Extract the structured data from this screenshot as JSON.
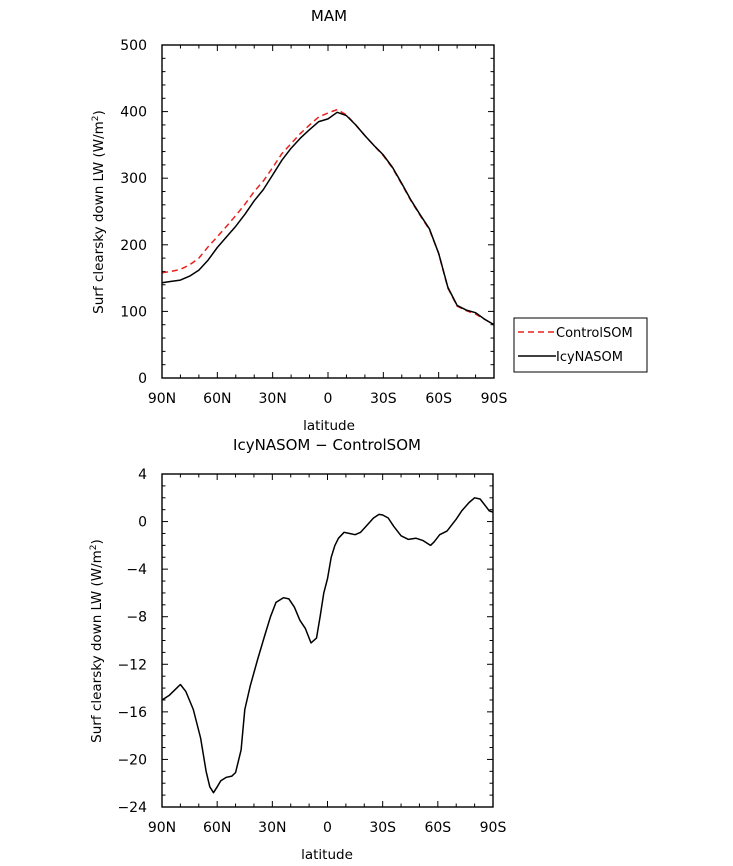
{
  "chart_data": [
    {
      "type": "line",
      "title": "MAM",
      "xlabel": "latitude",
      "ylabel": "Surf clearsky down LW (W/m",
      "ylabel_sup": "2",
      "ylabel_close": ")",
      "xlim": [
        90,
        -90
      ],
      "ylim": [
        0,
        500
      ],
      "x_ticks": [
        90,
        60,
        30,
        0,
        -30,
        -60,
        -90
      ],
      "x_tick_labels": [
        "90N",
        "60N",
        "30N",
        "0",
        "30S",
        "60S",
        "90S"
      ],
      "y_ticks": [
        0,
        100,
        200,
        300,
        400,
        500
      ],
      "y_tick_labels": [
        "0",
        "100",
        "200",
        "300",
        "400",
        "500"
      ],
      "grid": false,
      "legend_position": "right",
      "series": [
        {
          "name": "ControlSOM",
          "color": "#e8211c",
          "dash": "dashed",
          "x": [
            90,
            85,
            80,
            75,
            70,
            65,
            60,
            55,
            50,
            45,
            40,
            35,
            30,
            25,
            20,
            15,
            10,
            5,
            0,
            -5,
            -10,
            -15,
            -20,
            -25,
            -30,
            -35,
            -40,
            -45,
            -50,
            -55,
            -60,
            -65,
            -70,
            -75,
            -80,
            -85,
            -90
          ],
          "y": [
            158,
            160,
            163,
            170,
            180,
            197,
            212,
            228,
            244,
            261,
            280,
            296,
            316,
            337,
            352,
            367,
            380,
            392,
            398,
            403,
            395,
            380,
            364,
            349,
            334,
            315,
            291,
            266,
            244,
            223,
            187,
            135,
            108,
            101,
            96,
            88,
            80
          ]
        },
        {
          "name": "IcyNASOM",
          "color": "#000000",
          "dash": "solid",
          "x": [
            90,
            85,
            80,
            75,
            70,
            65,
            60,
            55,
            50,
            45,
            40,
            35,
            30,
            25,
            20,
            15,
            10,
            5,
            0,
            -5,
            -10,
            -15,
            -20,
            -25,
            -30,
            -35,
            -40,
            -45,
            -50,
            -55,
            -60,
            -65,
            -70,
            -75,
            -80,
            -85,
            -90
          ],
          "y": [
            143,
            145,
            147,
            153,
            162,
            177,
            196,
            212,
            228,
            246,
            266,
            283,
            305,
            327,
            345,
            360,
            373,
            385,
            389,
            399,
            394,
            380,
            364,
            349,
            335,
            316,
            292,
            267,
            245,
            224,
            187,
            136,
            109,
            102,
            98,
            88,
            80
          ]
        }
      ]
    },
    {
      "type": "line",
      "title": "IcyNASOM − ControlSOM",
      "xlabel": "latitude",
      "ylabel": "Surf clearsky down LW (W/m",
      "ylabel_sup": "2",
      "ylabel_close": ")",
      "xlim": [
        90,
        -90
      ],
      "ylim": [
        -24,
        4
      ],
      "x_ticks": [
        90,
        60,
        30,
        0,
        -30,
        -60,
        -90
      ],
      "x_tick_labels": [
        "90N",
        "60N",
        "30N",
        "0",
        "30S",
        "60S",
        "90S"
      ],
      "y_ticks": [
        4,
        0,
        -4,
        -8,
        -12,
        -16,
        -20,
        -24
      ],
      "y_tick_labels": [
        "4",
        "0",
        "−4",
        "−8",
        "−12",
        "−16",
        "−20",
        "−24"
      ],
      "grid": false,
      "series": [
        {
          "color": "#000000",
          "dash": "solid",
          "x": [
            90,
            86,
            82,
            80,
            77,
            73,
            69,
            66,
            64,
            62,
            60,
            58,
            55,
            52,
            50,
            47,
            45,
            42,
            38,
            34,
            31,
            28,
            24,
            21,
            18,
            15,
            12,
            9,
            6,
            4,
            2,
            0,
            -2,
            -4,
            -6,
            -9,
            -12,
            -15,
            -18,
            -21,
            -25,
            -28,
            -30,
            -33,
            -36,
            -40,
            -44,
            -48,
            -52,
            -56,
            -58,
            -61,
            -65,
            -70,
            -73,
            -77,
            -80,
            -83,
            -86,
            -88,
            -90
          ],
          "y": [
            -15.0,
            -14.6,
            -14.0,
            -13.7,
            -14.3,
            -15.8,
            -18.2,
            -21.0,
            -22.3,
            -22.8,
            -22.3,
            -21.8,
            -21.5,
            -21.4,
            -21.1,
            -19.2,
            -15.8,
            -13.8,
            -11.6,
            -9.5,
            -8.0,
            -6.8,
            -6.4,
            -6.5,
            -7.2,
            -8.3,
            -9.0,
            -10.2,
            -9.8,
            -8.0,
            -6.0,
            -4.8,
            -3.0,
            -2.0,
            -1.4,
            -0.9,
            -1.0,
            -1.1,
            -0.9,
            -0.4,
            0.3,
            0.6,
            0.55,
            0.3,
            -0.4,
            -1.2,
            -1.5,
            -1.4,
            -1.6,
            -2.0,
            -1.7,
            -1.1,
            -0.8,
            0.2,
            0.9,
            1.6,
            2.0,
            1.9,
            1.3,
            0.9,
            0.8
          ]
        }
      ]
    }
  ],
  "legend": {
    "items": [
      {
        "label": "ControlSOM",
        "color": "#e8211c",
        "dash": "dashed"
      },
      {
        "label": "IcyNASOM",
        "color": "#000000",
        "dash": "solid"
      }
    ]
  }
}
